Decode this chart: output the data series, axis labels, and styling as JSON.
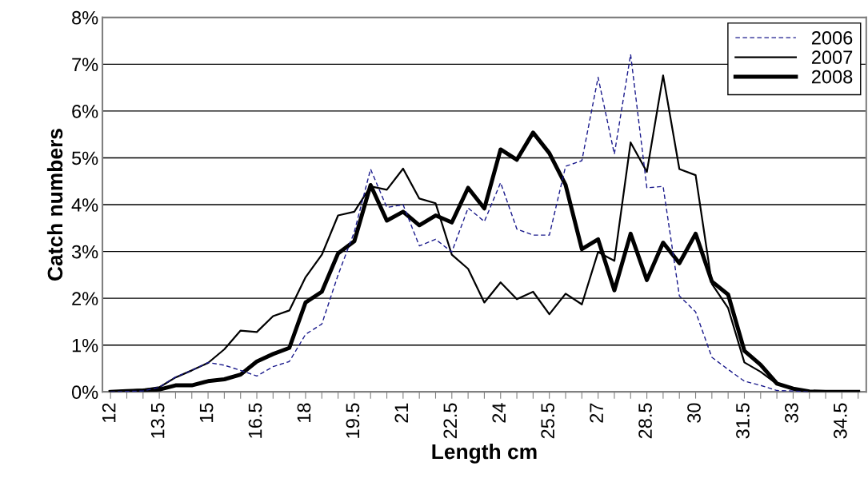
{
  "chart_data": {
    "type": "line",
    "xlabel": "Length cm",
    "ylabel": "Catch numbers",
    "categories": [
      "12",
      null,
      null,
      "13.5",
      null,
      null,
      "15",
      null,
      null,
      "16.5",
      null,
      null,
      "18",
      null,
      null,
      "19.5",
      null,
      null,
      "21",
      null,
      null,
      "22.5",
      null,
      null,
      "24",
      null,
      null,
      "25.5",
      null,
      null,
      "27",
      null,
      null,
      "28.5",
      null,
      null,
      "30",
      null,
      null,
      "31.5",
      null,
      null,
      "33",
      null,
      null,
      "34.5",
      null
    ],
    "series": [
      {
        "name": "2006",
        "color": "#1a1a8c",
        "line_style": "dashed",
        "values": [
          0,
          0.01,
          0.02,
          0.1,
          0.32,
          0.46,
          0.63,
          0.57,
          0.46,
          0.34,
          0.54,
          0.65,
          1.23,
          1.45,
          2.5,
          3.42,
          4.76,
          3.94,
          4.0,
          3.12,
          3.26,
          2.99,
          3.93,
          3.64,
          4.47,
          3.48,
          3.35,
          3.35,
          4.82,
          4.94,
          6.72,
          5.08,
          7.21,
          4.36,
          4.39,
          2.05,
          1.71,
          0.74,
          0.48,
          0.23,
          0.14,
          0.03,
          0.02,
          0,
          null,
          null,
          null
        ]
      },
      {
        "name": "2007",
        "color": "#000000",
        "line_style": "solid",
        "values": [
          0.01,
          0.03,
          0.05,
          0.1,
          0.31,
          0.46,
          0.62,
          0.91,
          1.31,
          1.28,
          1.62,
          1.74,
          2.45,
          2.93,
          3.77,
          3.85,
          4.39,
          4.32,
          4.77,
          4.13,
          4.03,
          2.93,
          2.63,
          1.91,
          2.34,
          1.98,
          2.14,
          1.66,
          2.1,
          1.87,
          2.99,
          2.8,
          5.33,
          4.7,
          6.76,
          4.76,
          4.63,
          2.31,
          1.79,
          0.63,
          0.43,
          0.17,
          0.07,
          0.01,
          0,
          0,
          0
        ]
      },
      {
        "name": "2008",
        "color": "#000000",
        "line_style": "solid",
        "values": [
          0,
          0.02,
          0.03,
          0.05,
          0.14,
          0.14,
          0.23,
          0.27,
          0.37,
          0.65,
          0.81,
          0.94,
          1.91,
          2.14,
          2.96,
          3.22,
          4.42,
          3.66,
          3.85,
          3.56,
          3.77,
          3.62,
          4.36,
          3.92,
          5.18,
          4.96,
          5.54,
          5.1,
          4.42,
          3.05,
          3.26,
          2.17,
          3.38,
          2.39,
          3.19,
          2.75,
          3.38,
          2.36,
          2.08,
          0.88,
          0.58,
          0.18,
          0.07,
          0.01,
          0,
          0,
          0
        ]
      }
    ],
    "ylim": [
      0,
      8
    ],
    "yticks": [
      {
        "value": 0,
        "label": "0%"
      },
      {
        "value": 1,
        "label": "1%"
      },
      {
        "value": 2,
        "label": "2%"
      },
      {
        "value": 3,
        "label": "3%"
      },
      {
        "value": 4,
        "label": "4%"
      },
      {
        "value": 5,
        "label": "5%"
      },
      {
        "value": 6,
        "label": "6%"
      },
      {
        "value": 7,
        "label": "7%"
      },
      {
        "value": 8,
        "label": "8%"
      }
    ],
    "grid": "y",
    "legend": "top right",
    "marker": "none"
  }
}
